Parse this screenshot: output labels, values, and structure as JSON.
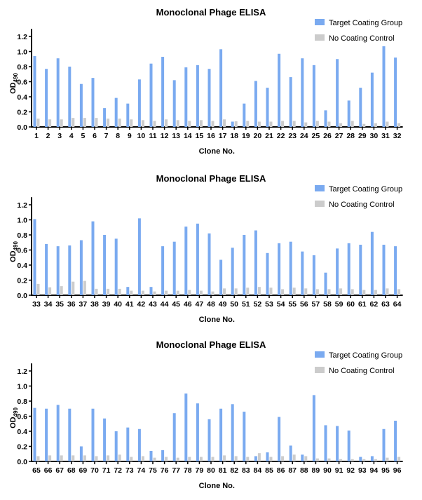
{
  "colors": {
    "target": "#7aaaf0",
    "control": "#cccccc",
    "axis": "#000000"
  },
  "chart_data": [
    {
      "type": "bar",
      "title": "Monoclonal Phage ELISA",
      "xlabel": "Clone No.",
      "ylabel": "OD",
      "ylabel_sub": "490",
      "ylim": [
        0,
        1.3
      ],
      "yticks": [
        "0.0",
        "0.2",
        "0.4",
        "0.6",
        "0.8",
        "1.0",
        "1.2"
      ],
      "legend": "top-right",
      "grid": false,
      "categories": [
        "1",
        "2",
        "3",
        "4",
        "5",
        "6",
        "7",
        "8",
        "9",
        "10",
        "11",
        "12",
        "13",
        "14",
        "15",
        "16",
        "17",
        "18",
        "19",
        "20",
        "21",
        "22",
        "23",
        "24",
        "25",
        "26",
        "27",
        "28",
        "29",
        "30",
        "31",
        "32"
      ],
      "series": [
        {
          "name": "Target Coating Group",
          "values": [
            0.94,
            0.77,
            0.91,
            0.8,
            0.57,
            0.65,
            0.25,
            0.385,
            0.31,
            0.63,
            0.84,
            0.93,
            0.62,
            0.79,
            0.82,
            0.77,
            1.03,
            0.07,
            0.31,
            0.61,
            0.52,
            0.97,
            0.66,
            0.91,
            0.82,
            0.22,
            0.9,
            0.35,
            0.52,
            0.72,
            1.07,
            0.92
          ]
        },
        {
          "name": "No Coating Control",
          "values": [
            0.11,
            0.1,
            0.1,
            0.12,
            0.12,
            0.12,
            0.11,
            0.11,
            0.1,
            0.09,
            0.08,
            0.1,
            0.09,
            0.08,
            0.09,
            0.08,
            0.1,
            0.075,
            0.08,
            0.07,
            0.07,
            0.08,
            0.08,
            0.06,
            0.08,
            0.07,
            0.05,
            0.08,
            0.04,
            0.05,
            0.07,
            0.05
          ]
        }
      ]
    },
    {
      "type": "bar",
      "title": "Monoclonal Phage ELISA",
      "xlabel": "Clone No.",
      "ylabel": "OD",
      "ylabel_sub": "490",
      "ylim": [
        0,
        1.3
      ],
      "yticks": [
        "0.0",
        "0.2",
        "0.4",
        "0.6",
        "0.8",
        "1.0",
        "1.2"
      ],
      "legend": "top-right",
      "grid": false,
      "categories": [
        "33",
        "34",
        "35",
        "36",
        "37",
        "38",
        "39",
        "40",
        "41",
        "42",
        "43",
        "44",
        "45",
        "46",
        "47",
        "48",
        "49",
        "50",
        "51",
        "52",
        "53",
        "54",
        "55",
        "56",
        "57",
        "58",
        "59",
        "60",
        "61",
        "62",
        "63",
        "64"
      ],
      "series": [
        {
          "name": "Target Coating Group",
          "values": [
            1.01,
            0.68,
            0.65,
            0.66,
            0.73,
            0.98,
            0.8,
            0.75,
            0.11,
            1.02,
            0.11,
            0.65,
            0.71,
            0.91,
            0.95,
            0.82,
            0.47,
            0.63,
            0.8,
            0.86,
            0.56,
            0.69,
            0.71,
            0.58,
            0.53,
            0.3,
            0.62,
            0.69,
            0.67,
            0.84,
            0.67,
            0.65
          ]
        },
        {
          "name": "No Coating Control",
          "values": [
            0.15,
            0.105,
            0.12,
            0.18,
            0.19,
            0.085,
            0.085,
            0.085,
            0.06,
            0.06,
            0.05,
            0.06,
            0.06,
            0.07,
            0.06,
            0.05,
            0.09,
            0.09,
            0.1,
            0.11,
            0.1,
            0.08,
            0.1,
            0.09,
            0.08,
            0.08,
            0.09,
            0.08,
            0.07,
            0.07,
            0.09,
            0.08
          ]
        }
      ]
    },
    {
      "type": "bar",
      "title": "Monoclonal Phage ELISA",
      "xlabel": "Clone No.",
      "ylabel": "OD",
      "ylabel_sub": "490",
      "ylim": [
        0,
        1.3
      ],
      "yticks": [
        "0.0",
        "0.2",
        "0.4",
        "0.6",
        "0.8",
        "1.0",
        "1.2"
      ],
      "legend": "top-right",
      "grid": false,
      "categories": [
        "65",
        "66",
        "67",
        "68",
        "69",
        "70",
        "71",
        "72",
        "73",
        "74",
        "75",
        "76",
        "77",
        "78",
        "79",
        "80",
        "81",
        "82",
        "83",
        "84",
        "85",
        "86",
        "87",
        "88",
        "89",
        "90",
        "91",
        "92",
        "93",
        "94",
        "95",
        "96"
      ],
      "series": [
        {
          "name": "Target Coating Group",
          "values": [
            0.71,
            0.7,
            0.75,
            0.7,
            0.2,
            0.7,
            0.57,
            0.4,
            0.45,
            0.43,
            0.14,
            0.15,
            0.64,
            0.9,
            0.77,
            0.56,
            0.7,
            0.76,
            0.66,
            0.07,
            0.12,
            0.59,
            0.21,
            0.09,
            0.88,
            0.48,
            0.47,
            0.41,
            0.06,
            0.07,
            0.43,
            0.54
          ]
        },
        {
          "name": "No Coating Control",
          "values": [
            0.07,
            0.08,
            0.08,
            0.08,
            0.08,
            0.07,
            0.08,
            0.09,
            0.06,
            0.07,
            0.05,
            0.06,
            0.05,
            0.06,
            0.06,
            0.06,
            0.08,
            0.07,
            0.06,
            0.11,
            0.06,
            0.07,
            0.09,
            0.07,
            0.04,
            0.04,
            0.03,
            0.03,
            0.03,
            0.03,
            0.05,
            0.06
          ]
        }
      ]
    }
  ]
}
